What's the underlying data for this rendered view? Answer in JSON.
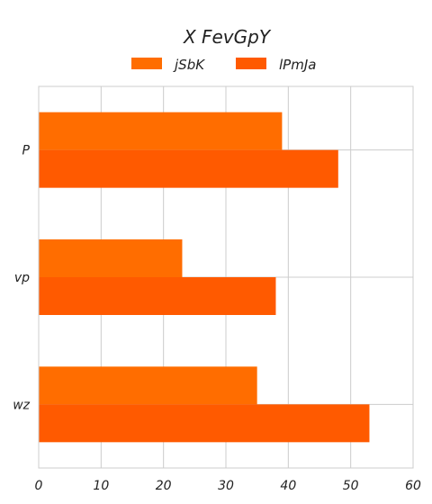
{
  "chart_data": {
    "type": "bar",
    "orientation": "horizontal",
    "title": "X FevGpY",
    "xlabel": "",
    "ylabel": "",
    "categories": [
      "P",
      "vp",
      "wz"
    ],
    "series": [
      {
        "name": "jSbK",
        "values": [
          39,
          23,
          35
        ],
        "color": "#ff6d00"
      },
      {
        "name": "lPmJa",
        "values": [
          48,
          38,
          53
        ],
        "color": "#ff5a00"
      }
    ],
    "xlim": [
      0,
      60
    ],
    "xticks": [
      0,
      10,
      20,
      30,
      40,
      50,
      60
    ],
    "grid": true,
    "legend_position": "top-center"
  }
}
